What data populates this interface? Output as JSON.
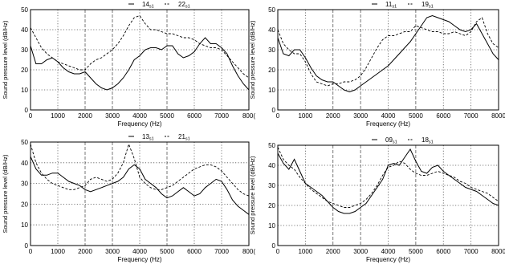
{
  "chart_data": [
    {
      "type": "line",
      "xlabel": "Frequency (Hz)",
      "ylabel": "Sound pressure level (dB/Hz)",
      "xlim": [
        0,
        8000
      ],
      "ylim": [
        0,
        50
      ],
      "xticks": [
        "0",
        "1000",
        "2000",
        "3000",
        "4000",
        "5000",
        "6000",
        "7000",
        "800("
      ],
      "yticks": [
        "0",
        "10",
        "20",
        "30",
        "40",
        "50"
      ],
      "grid": true,
      "legend_position": "top-center",
      "series": [
        {
          "name": "14",
          "name_sub": "s1",
          "style": "solid",
          "x": [
            0,
            200,
            400,
            600,
            800,
            1000,
            1200,
            1400,
            1600,
            1800,
            2000,
            2200,
            2400,
            2600,
            2800,
            3000,
            3200,
            3400,
            3600,
            3800,
            4000,
            4200,
            4400,
            4600,
            4800,
            5000,
            5200,
            5400,
            5600,
            5800,
            6000,
            6200,
            6400,
            6600,
            6800,
            7000,
            7200,
            7400,
            7600,
            7800,
            8000
          ],
          "values": [
            32,
            23,
            23,
            25,
            26,
            24,
            21,
            19,
            18,
            18,
            19,
            16,
            13,
            11,
            10,
            11,
            13,
            16,
            20,
            25,
            27,
            30,
            31,
            31,
            30,
            32,
            32,
            28,
            26,
            27,
            29,
            33,
            36,
            33,
            33,
            31,
            28,
            22,
            17,
            13,
            10
          ]
        },
        {
          "name": "22",
          "name_sub": "s1",
          "style": "dashed",
          "x": [
            0,
            200,
            400,
            600,
            800,
            1000,
            1200,
            1400,
            1600,
            1800,
            2000,
            2200,
            2400,
            2600,
            2800,
            3000,
            3200,
            3400,
            3600,
            3800,
            4000,
            4200,
            4400,
            4600,
            4800,
            5000,
            5200,
            5400,
            5600,
            5800,
            6000,
            6200,
            6400,
            6600,
            6800,
            7000,
            7200,
            7400,
            7600,
            7800,
            8000
          ],
          "values": [
            41,
            36,
            31,
            28,
            26,
            24,
            23,
            22,
            21,
            20,
            20,
            23,
            25,
            26,
            28,
            30,
            33,
            37,
            42,
            46,
            47,
            43,
            40,
            40,
            39,
            38,
            38,
            37,
            36,
            36,
            35,
            33,
            32,
            31,
            31,
            30,
            27,
            24,
            21,
            18,
            16
          ]
        }
      ]
    },
    {
      "type": "line",
      "xlabel": "Frequency (Hz)",
      "ylabel": "Sound pressure level (dB/Hz)",
      "xlim": [
        0,
        8000
      ],
      "ylim": [
        0,
        50
      ],
      "xticks": [
        "0",
        "1000",
        "2000",
        "3000",
        "4000",
        "5000",
        "6000",
        "7000",
        "8000"
      ],
      "yticks": [
        "0",
        "10",
        "20",
        "30",
        "40",
        "50"
      ],
      "grid": true,
      "legend_position": "top-center",
      "series": [
        {
          "name": "11",
          "name_sub": "s1",
          "style": "solid",
          "x": [
            0,
            200,
            400,
            600,
            800,
            1000,
            1200,
            1400,
            1600,
            1800,
            2000,
            2200,
            2400,
            2600,
            2800,
            3000,
            3200,
            3400,
            3600,
            3800,
            4000,
            4200,
            4400,
            4600,
            4800,
            5000,
            5200,
            5400,
            5600,
            5800,
            6000,
            6200,
            6400,
            6600,
            6800,
            7000,
            7200,
            7400,
            7600,
            7800,
            8000
          ],
          "values": [
            36,
            28,
            27,
            30,
            30,
            26,
            21,
            17,
            15,
            14,
            14,
            12,
            10,
            9,
            10,
            12,
            14,
            16,
            18,
            20,
            22,
            25,
            28,
            31,
            34,
            38,
            42,
            46,
            47,
            46,
            45,
            44,
            42,
            40,
            39,
            40,
            43,
            38,
            33,
            28,
            25
          ]
        },
        {
          "name": "19",
          "name_sub": "s1",
          "style": "dashed",
          "x": [
            0,
            200,
            400,
            600,
            800,
            1000,
            1200,
            1400,
            1600,
            1800,
            2000,
            2200,
            2400,
            2600,
            2800,
            3000,
            3200,
            3400,
            3600,
            3800,
            4000,
            4200,
            4400,
            4600,
            4800,
            5000,
            5200,
            5400,
            5600,
            5800,
            6000,
            6200,
            6400,
            6600,
            6800,
            7000,
            7200,
            7400,
            7600,
            7800,
            8000
          ],
          "values": [
            40,
            33,
            30,
            28,
            28,
            24,
            18,
            14,
            13,
            12,
            13,
            13,
            14,
            14,
            15,
            17,
            21,
            26,
            31,
            35,
            37,
            37,
            38,
            39,
            39,
            42,
            41,
            40,
            39,
            39,
            38,
            38,
            39,
            38,
            37,
            39,
            44,
            46,
            38,
            33,
            31
          ]
        }
      ]
    },
    {
      "type": "line",
      "xlabel": "Frequency (Hz)",
      "ylabel": "Sound pressure level (dB/Hz)",
      "xlim": [
        0,
        8000
      ],
      "ylim": [
        0,
        50
      ],
      "xticks": [
        "0",
        "1000",
        "2000",
        "3000",
        "4000",
        "5000",
        "6000",
        "7000",
        "800("
      ],
      "yticks": [
        "0",
        "10",
        "20",
        "30",
        "40",
        "50"
      ],
      "grid": true,
      "legend_position": "top-center",
      "series": [
        {
          "name": "13",
          "name_sub": "s1",
          "style": "solid",
          "x": [
            0,
            200,
            400,
            600,
            800,
            1000,
            1200,
            1400,
            1600,
            1800,
            2000,
            2200,
            2400,
            2600,
            2800,
            3000,
            3200,
            3400,
            3600,
            3800,
            4000,
            4200,
            4400,
            4600,
            4800,
            5000,
            5200,
            5400,
            5600,
            5800,
            6000,
            6200,
            6400,
            6600,
            6800,
            7000,
            7200,
            7400,
            7600,
            7800,
            8000
          ],
          "values": [
            43,
            37,
            34,
            34,
            35,
            35,
            33,
            31,
            30,
            29,
            27,
            26,
            27,
            28,
            29,
            30,
            31,
            33,
            37,
            39,
            37,
            32,
            30,
            28,
            25,
            23,
            24,
            26,
            28,
            26,
            24,
            25,
            28,
            30,
            32,
            31,
            27,
            22,
            19,
            17,
            15
          ]
        },
        {
          "name": "21",
          "name_sub": "s1",
          "style": "dashed",
          "x": [
            0,
            200,
            400,
            600,
            800,
            1000,
            1200,
            1400,
            1600,
            1800,
            2000,
            2200,
            2400,
            2600,
            2800,
            3000,
            3200,
            3400,
            3600,
            3800,
            4000,
            4200,
            4400,
            4600,
            4800,
            5000,
            5200,
            5400,
            5600,
            5800,
            6000,
            6200,
            6400,
            6600,
            6800,
            7000,
            7200,
            7400,
            7600,
            7800,
            8000
          ],
          "values": [
            49,
            40,
            35,
            32,
            30,
            29,
            28,
            27,
            27,
            28,
            29,
            32,
            33,
            32,
            31,
            32,
            35,
            40,
            49,
            42,
            33,
            30,
            28,
            27,
            27,
            28,
            29,
            31,
            33,
            35,
            37,
            38,
            39,
            39,
            38,
            36,
            33,
            30,
            27,
            25,
            24
          ]
        }
      ]
    },
    {
      "type": "line",
      "xlabel": "Frequency (Hz)",
      "ylabel": "Sound pressure level (dB/Hz)",
      "xlim": [
        0,
        8000
      ],
      "ylim": [
        0,
        50
      ],
      "xticks": [
        "0",
        "1000",
        "2000",
        "3000",
        "4000",
        "5000",
        "6000",
        "7000",
        "8000"
      ],
      "yticks": [
        "0",
        "10",
        "20",
        "30",
        "40",
        "50"
      ],
      "grid": true,
      "legend_position": "top-center",
      "series": [
        {
          "name": "09",
          "name_sub": "s1",
          "style": "solid",
          "x": [
            0,
            200,
            400,
            600,
            800,
            1000,
            1200,
            1400,
            1600,
            1800,
            2000,
            2200,
            2400,
            2600,
            2800,
            3000,
            3200,
            3400,
            3600,
            3800,
            4000,
            4200,
            4400,
            4600,
            4800,
            5000,
            5200,
            5400,
            5600,
            5800,
            6000,
            6200,
            6400,
            6600,
            6800,
            7000,
            7200,
            7400,
            7600,
            7800,
            8000
          ],
          "values": [
            46,
            41,
            38,
            43,
            37,
            31,
            29,
            27,
            25,
            22,
            19,
            17,
            16,
            16,
            17,
            19,
            21,
            25,
            29,
            33,
            40,
            41,
            40,
            44,
            48,
            42,
            37,
            36,
            39,
            40,
            37,
            35,
            33,
            31,
            29,
            28,
            27,
            25,
            23,
            21,
            20
          ]
        },
        {
          "name": "18",
          "name_sub": "s1",
          "style": "dashed",
          "x": [
            0,
            200,
            400,
            600,
            800,
            1000,
            1200,
            1400,
            1600,
            1800,
            2000,
            2200,
            2400,
            2600,
            2800,
            3000,
            3200,
            3400,
            3600,
            3800,
            4000,
            4200,
            4400,
            4600,
            4800,
            5000,
            5200,
            5400,
            5600,
            5800,
            6000,
            6200,
            6400,
            6600,
            6800,
            7000,
            7200,
            7400,
            7600,
            7800,
            8000
          ],
          "values": [
            49,
            43,
            40,
            38,
            34,
            31,
            28,
            26,
            24,
            22,
            21,
            20,
            19,
            19,
            20,
            21,
            23,
            26,
            30,
            35,
            39,
            40,
            42,
            41,
            38,
            36,
            35,
            35,
            36,
            37,
            36,
            35,
            34,
            32,
            31,
            29,
            28,
            27,
            26,
            24,
            22
          ]
        }
      ]
    }
  ]
}
